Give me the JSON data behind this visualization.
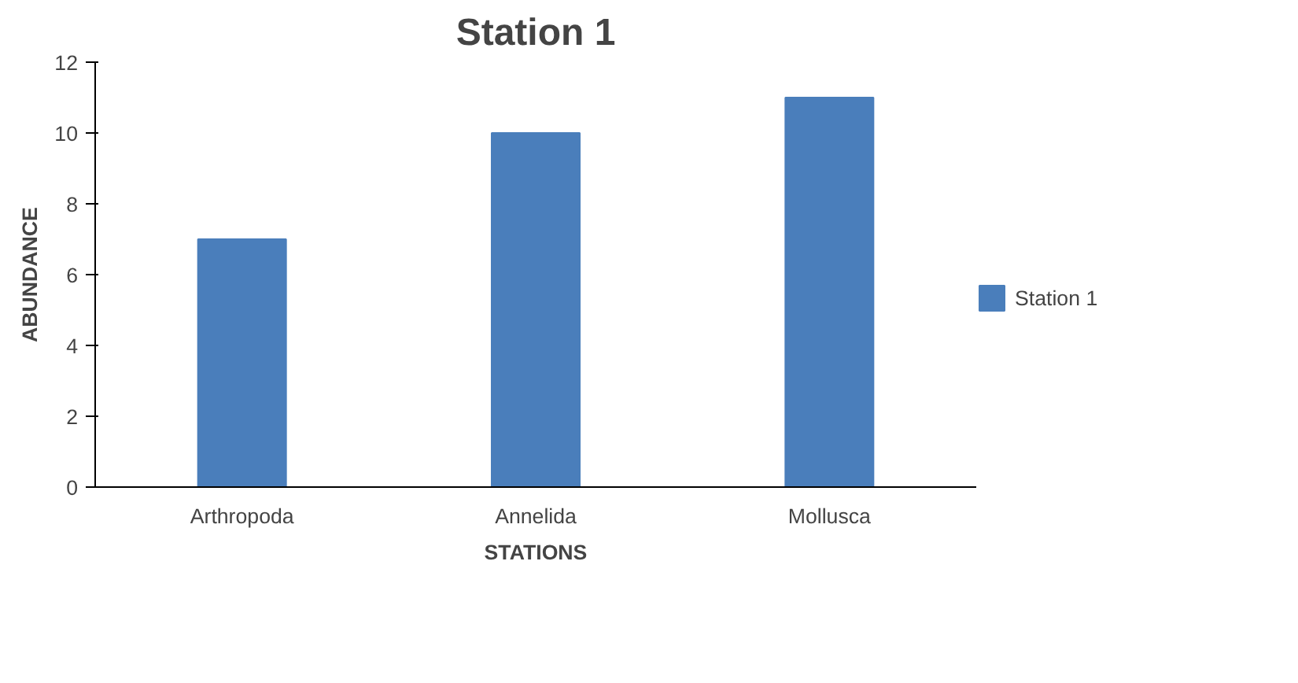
{
  "chart_data": {
    "type": "bar",
    "title": "Station 1",
    "xlabel": "STATIONS",
    "ylabel": "ABUNDANCE",
    "categories": [
      "Arthropoda",
      "Annelida",
      "Mollusca"
    ],
    "series": [
      {
        "name": "Station 1",
        "color": "#4a7ebb",
        "values": [
          7,
          10,
          11
        ]
      }
    ],
    "ylim": [
      0,
      12
    ],
    "yticks": [
      0,
      2,
      4,
      6,
      8,
      10,
      12
    ],
    "grid": false,
    "legend": "right"
  }
}
